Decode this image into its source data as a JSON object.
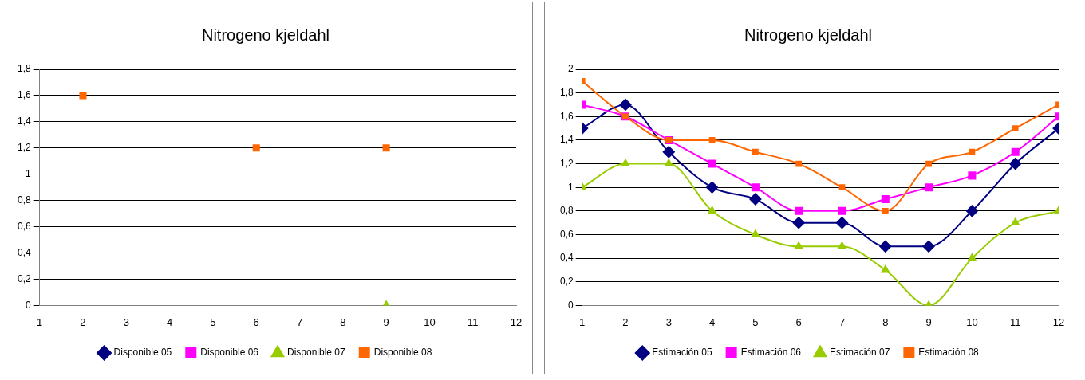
{
  "chart_data": [
    {
      "type": "scatter",
      "title": "Nitrogeno kjeldahl",
      "xlim": [
        1,
        12
      ],
      "xticks": [
        1,
        2,
        3,
        4,
        5,
        6,
        7,
        8,
        9,
        10,
        11,
        12
      ],
      "ylim": [
        0,
        1.8
      ],
      "yticks": [
        0,
        {
          "value": 0.2,
          "label": "0,2"
        },
        {
          "value": 0.4,
          "label": "0,4"
        },
        {
          "value": 0.6,
          "label": "0,6"
        },
        {
          "value": 0.8,
          "label": "0,8"
        },
        1,
        {
          "value": 1.2,
          "label": "1,2"
        },
        {
          "value": 1.4,
          "label": "1,4"
        },
        {
          "value": 1.6,
          "label": "1,6"
        },
        {
          "value": 1.8,
          "label": "1,8"
        }
      ],
      "grid": "y",
      "legend": "bottom",
      "series": [
        {
          "name": "Disponible 05",
          "color": "#000080",
          "marker": "diamond"
        },
        {
          "name": "Disponible 06",
          "color": "#ff00ff",
          "marker": "square"
        },
        {
          "name": "Disponible 07",
          "color": "#99cc00",
          "marker": "triangle",
          "x": [
            9
          ],
          "values": [
            0
          ]
        },
        {
          "name": "Disponible 08",
          "color": "#ff6600",
          "marker": "square",
          "x": [
            2,
            6,
            9
          ],
          "values": [
            1.6,
            1.2,
            1.2
          ]
        }
      ]
    },
    {
      "type": "line",
      "title": "Nitrogeno kjeldahl",
      "x": [
        1,
        2,
        3,
        4,
        5,
        6,
        7,
        8,
        9,
        10,
        11,
        12
      ],
      "xlim": [
        1,
        12
      ],
      "xticks": [
        1,
        2,
        3,
        4,
        5,
        6,
        7,
        8,
        9,
        10,
        11,
        12
      ],
      "ylim": [
        0,
        2
      ],
      "yticks": [
        0,
        {
          "value": 0.2,
          "label": "0,2"
        },
        {
          "value": 0.4,
          "label": "0,4"
        },
        {
          "value": 0.6,
          "label": "0,6"
        },
        {
          "value": 0.8,
          "label": "0,8"
        },
        1,
        {
          "value": 1.2,
          "label": "1,2"
        },
        {
          "value": 1.4,
          "label": "1,4"
        },
        {
          "value": 1.6,
          "label": "1,6"
        },
        {
          "value": 1.8,
          "label": "1,8"
        },
        2
      ],
      "grid": "y",
      "legend": "bottom",
      "series": [
        {
          "name": "Estimación 05",
          "color": "#000080",
          "marker": "diamond",
          "values": [
            1.5,
            1.7,
            1.3,
            1.0,
            0.9,
            0.7,
            0.7,
            0.5,
            0.5,
            0.8,
            1.2,
            1.5
          ]
        },
        {
          "name": "Estimación 06",
          "color": "#ff00ff",
          "marker": "square",
          "values": [
            1.7,
            1.6,
            1.4,
            1.2,
            1.0,
            0.8,
            0.8,
            0.9,
            1.0,
            1.1,
            1.3,
            1.6
          ]
        },
        {
          "name": "Estimación 07",
          "color": "#99cc00",
          "marker": "triangle",
          "values": [
            1.0,
            1.2,
            1.2,
            0.8,
            0.6,
            0.5,
            0.5,
            0.3,
            0.0,
            0.4,
            0.7,
            0.8
          ]
        },
        {
          "name": "Estimación 08",
          "color": "#ff6600",
          "marker": "square",
          "values": [
            1.9,
            1.6,
            1.4,
            1.4,
            1.3,
            1.2,
            1.0,
            0.8,
            1.2,
            1.3,
            1.5,
            1.7
          ]
        }
      ]
    }
  ]
}
